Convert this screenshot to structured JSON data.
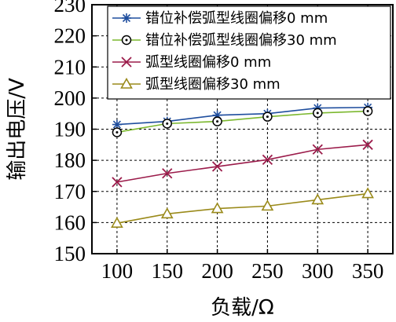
{
  "chart_data": {
    "type": "line",
    "xlabel": "负载/Ω",
    "ylabel": "输出电压/V",
    "x": [
      100,
      150,
      200,
      250,
      300,
      350
    ],
    "xlim": [
      75,
      375
    ],
    "ylim": [
      150,
      230
    ],
    "xticks": [
      "100",
      "150",
      "200",
      "250",
      "300",
      "350"
    ],
    "yticks": [
      "150",
      "160",
      "170",
      "180",
      "190",
      "200",
      "210",
      "220",
      "230"
    ],
    "grid": true,
    "legend": "top-right",
    "series": [
      {
        "name": "错位补偿弧型线圈偏移0 mm",
        "values": [
          191.5,
          192.5,
          194.5,
          195.0,
          196.8,
          197.0
        ],
        "color": "#1f4e9e",
        "marker": "asterisk"
      },
      {
        "name": "错位补偿弧型线圈偏移30 mm",
        "values": [
          189.0,
          191.8,
          192.5,
          194.0,
          195.2,
          195.8
        ],
        "color": "#7cb82f",
        "marker": "circle-dot"
      },
      {
        "name": "弧型线圈偏移0 mm",
        "values": [
          173.0,
          175.8,
          178.0,
          180.2,
          183.5,
          185.0
        ],
        "color": "#9b1b4a",
        "marker": "x"
      },
      {
        "name": "弧型线圈偏移30 mm",
        "values": [
          159.8,
          162.8,
          164.5,
          165.3,
          167.3,
          169.3
        ],
        "color": "#9a8a1a",
        "marker": "triangle"
      }
    ]
  }
}
